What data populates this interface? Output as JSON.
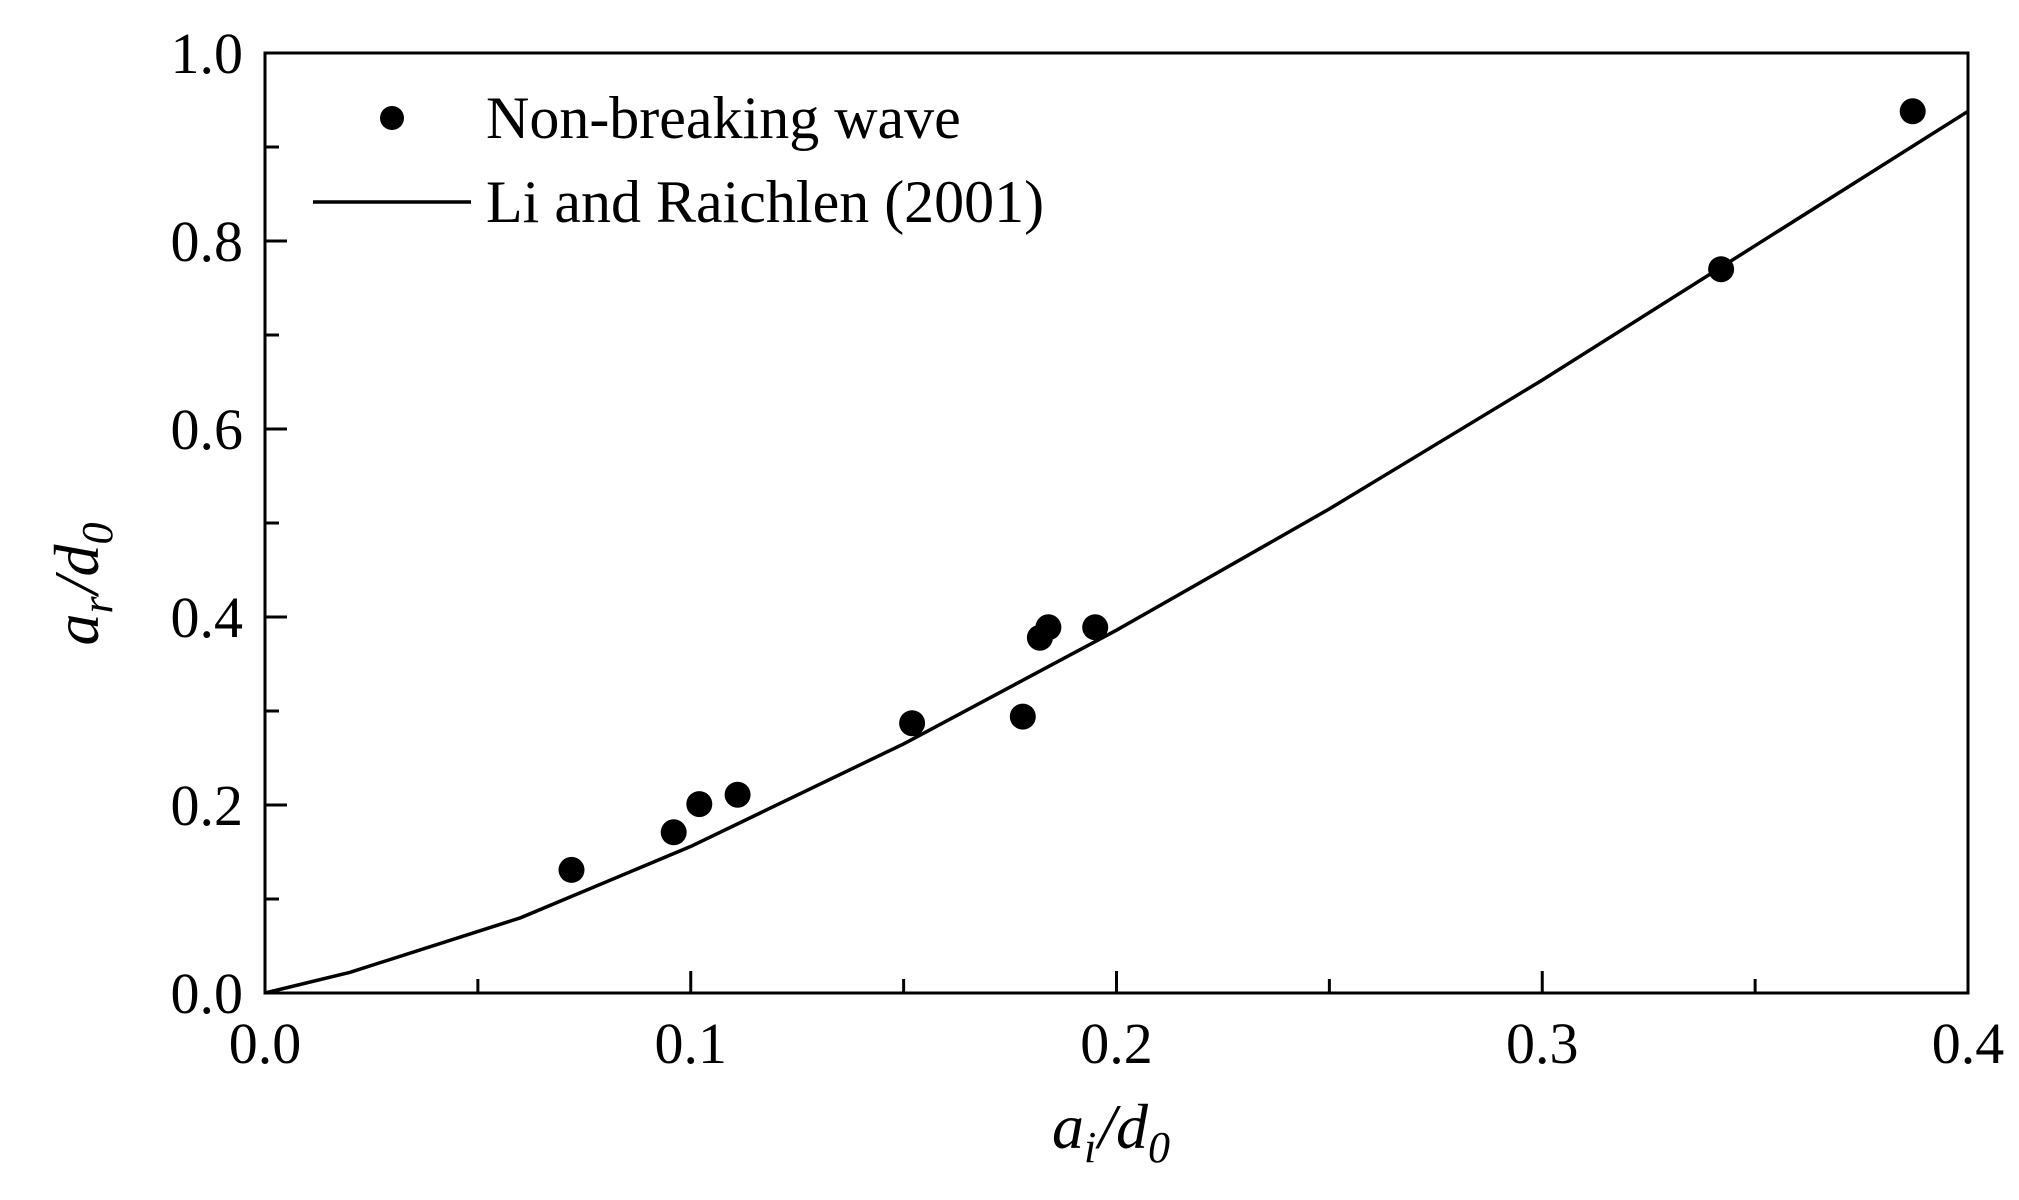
{
  "chart_data": {
    "type": "scatter",
    "title": "",
    "xlabel": {
      "base": "a",
      "sub": "i",
      "sep": "/",
      "base2": "d",
      "sub2": "0"
    },
    "ylabel": {
      "base": "a",
      "sub": "r",
      "sep": "/",
      "base2": "d",
      "sub2": "0"
    },
    "xlim": [
      0.0,
      0.4
    ],
    "ylim": [
      0.0,
      1.0
    ],
    "x_ticks": [
      0.0,
      0.1,
      0.2,
      0.3,
      0.4
    ],
    "x_tick_labels": [
      "0.0",
      "0.1",
      "0.2",
      "0.3",
      "0.4"
    ],
    "x_minor_ticks": [
      0.05,
      0.15,
      0.25,
      0.35
    ],
    "y_ticks": [
      0.0,
      0.2,
      0.4,
      0.6,
      0.8,
      1.0
    ],
    "y_tick_labels": [
      "0.0",
      "0.2",
      "0.4",
      "0.6",
      "0.8",
      "1.0"
    ],
    "y_minor_ticks": [
      0.1,
      0.3,
      0.5,
      0.7,
      0.9
    ],
    "grid": false,
    "legend_position": "top-left",
    "series": [
      {
        "name": "Non-breaking wave",
        "kind": "scatter",
        "marker": "filled-circle",
        "color": "#000000",
        "x": [
          0.072,
          0.096,
          0.102,
          0.111,
          0.152,
          0.178,
          0.182,
          0.184,
          0.195,
          0.342,
          0.387
        ],
        "y": [
          0.131,
          0.171,
          0.201,
          0.211,
          0.287,
          0.294,
          0.378,
          0.389,
          0.389,
          0.77,
          0.938
        ]
      },
      {
        "name": "Li and Raichlen (2001)",
        "kind": "line",
        "color": "#000000",
        "x": [
          0.0,
          0.02,
          0.06,
          0.1,
          0.15,
          0.2,
          0.25,
          0.3,
          0.35,
          0.4
        ],
        "y": [
          0.0,
          0.022,
          0.08,
          0.156,
          0.265,
          0.386,
          0.515,
          0.652,
          0.795,
          0.938
        ]
      }
    ]
  }
}
